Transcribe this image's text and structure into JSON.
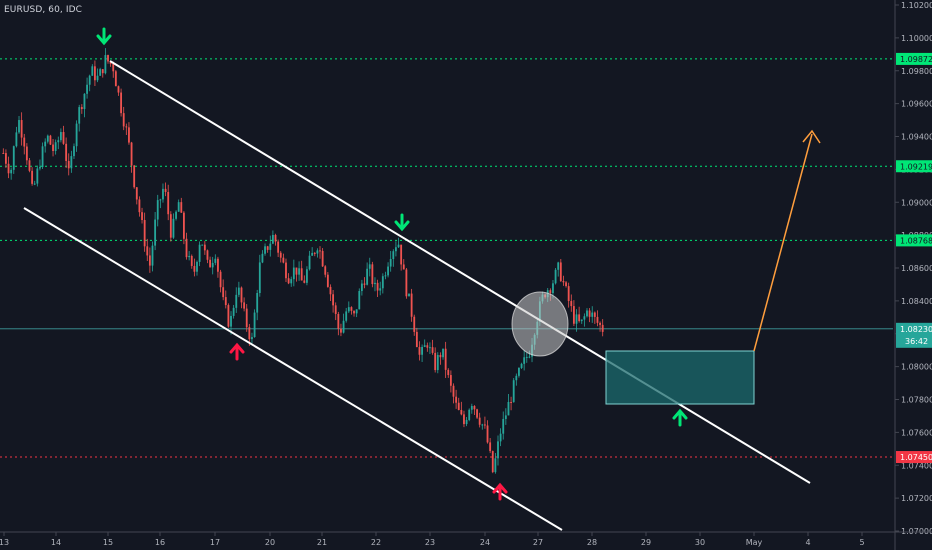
{
  "symbol_label": "EURUSD, 60, IDC",
  "colors": {
    "background": "#131722",
    "up": "#26a69a",
    "down": "#ef5350",
    "channel": "#ffffff",
    "green_level": "#00e676",
    "red_level": "#f23645",
    "current_price_line": "#3d9a9c",
    "target_box": "#1b6b6e",
    "projection_arrow": "#ff9e3d",
    "marker_up": "#ff1744",
    "marker_down": "#00e676"
  },
  "chart_data": {
    "type": "candlestick",
    "title": "EURUSD, 60, IDC",
    "y_ticks": [
      "1.10200",
      "1.10000",
      "1.09800",
      "1.09600",
      "1.09400",
      "1.09200",
      "1.09000",
      "1.08800",
      "1.08600",
      "1.08400",
      "1.08200",
      "1.08000",
      "1.07800",
      "1.07600",
      "1.07400",
      "1.07200",
      "1.07000"
    ],
    "y_range": [
      1.07,
      1.102
    ],
    "x_ticks": [
      "13",
      "14",
      "15",
      "16",
      "17",
      "20",
      "21",
      "22",
      "23",
      "24",
      "27",
      "28",
      "29",
      "30",
      "May",
      "4",
      "5"
    ],
    "horizontal_levels": [
      {
        "label": "1.09872",
        "value": 1.09872,
        "color": "green"
      },
      {
        "label": "1.09219",
        "value": 1.09219,
        "color": "green"
      },
      {
        "label": "1.08768",
        "value": 1.08768,
        "color": "green"
      },
      {
        "label": "1.07450",
        "value": 1.0745,
        "color": "red"
      }
    ],
    "current_price": {
      "label": "1.08230",
      "value": 1.0823,
      "countdown": "36:42"
    },
    "ohlc_path": [
      1.093,
      1.0918,
      1.0952,
      1.0935,
      1.0905,
      1.0925,
      1.094,
      1.093,
      1.0945,
      1.0915,
      1.095,
      1.0965,
      1.098,
      1.0975,
      1.0987,
      1.0983,
      1.096,
      1.094,
      1.091,
      1.0885,
      1.086,
      1.0895,
      1.091,
      1.088,
      1.09,
      1.087,
      1.0855,
      1.088,
      1.086,
      1.087,
      1.084,
      1.0825,
      1.085,
      1.083,
      1.0815,
      1.086,
      1.0872,
      1.088,
      1.0865,
      1.0855,
      1.086,
      1.085,
      1.0865,
      1.0875,
      1.086,
      1.084,
      1.082,
      1.0835,
      1.083,
      1.085,
      1.086,
      1.0845,
      1.0855,
      1.087,
      1.0877,
      1.085,
      1.083,
      1.0805,
      1.0815,
      1.08,
      1.081,
      1.079,
      1.0775,
      1.0765,
      1.078,
      1.077,
      1.076,
      1.0735,
      1.076,
      1.0775,
      1.079,
      1.08,
      1.081,
      1.083,
      1.0845,
      1.085,
      1.086,
      1.0845,
      1.083,
      1.0825,
      1.0835,
      1.0828,
      1.0823
    ]
  }
}
